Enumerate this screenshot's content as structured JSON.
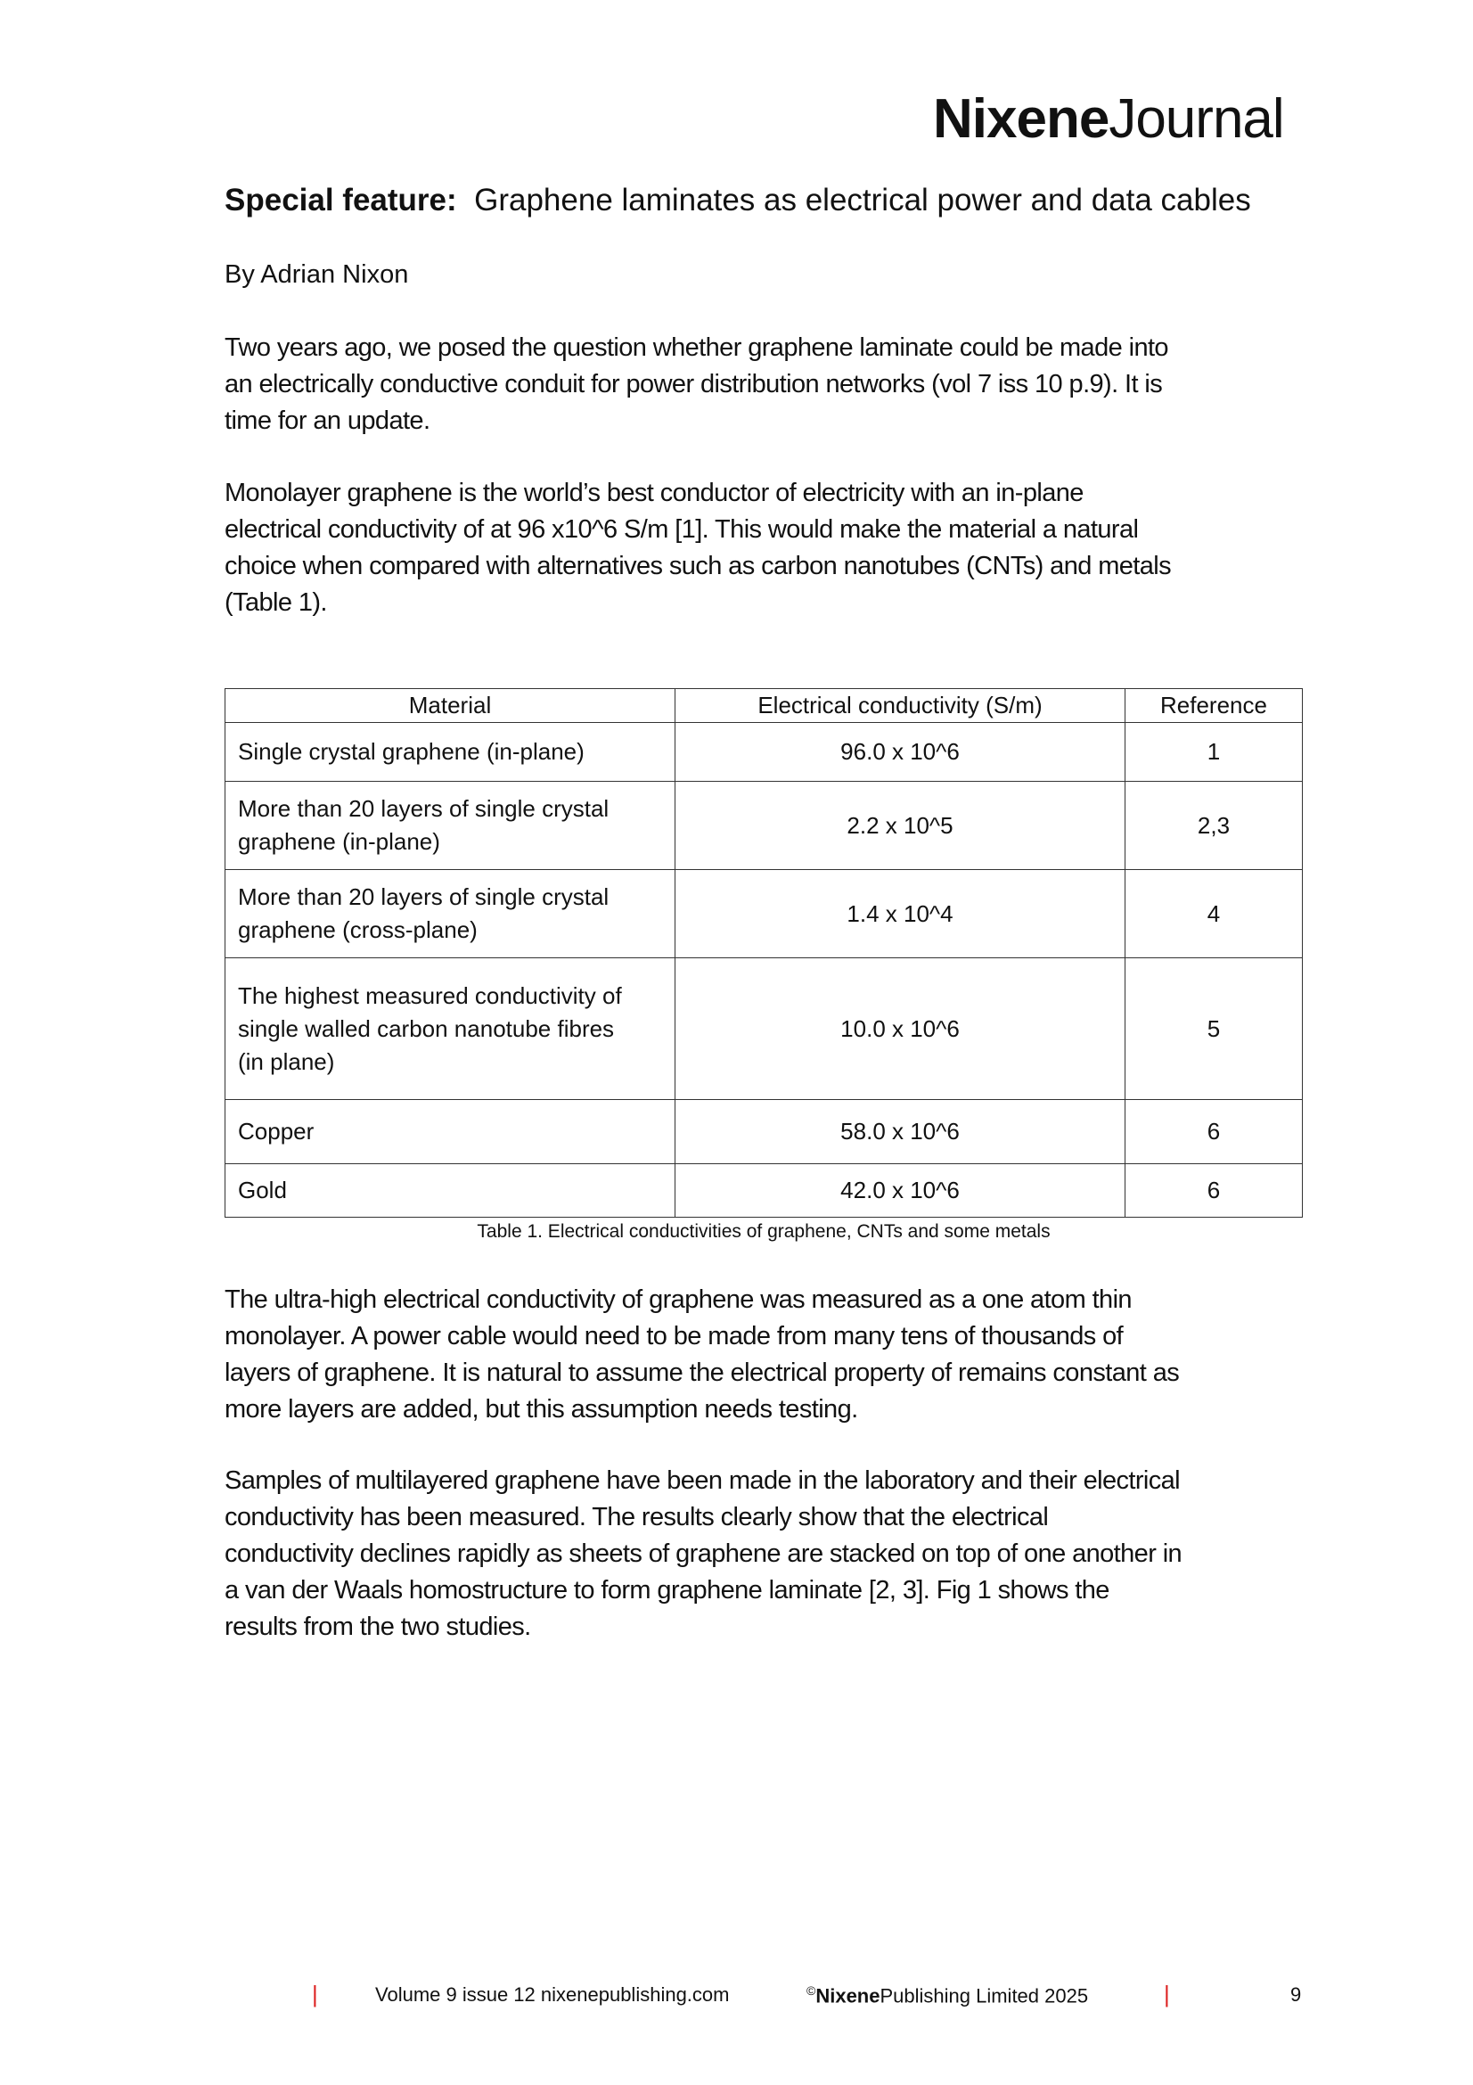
{
  "header": {
    "logo_bold": "Nixene",
    "logo_light": "Journal"
  },
  "article": {
    "title_label": "Special feature:",
    "title": "Graphene laminates as electrical power and data cables",
    "byline": "By Adrian Nixon",
    "para1": [
      "Two years ago, we posed the question whether graphene laminate could be made into",
      "an electrically conductive conduit for power distribution networks (vol 7 iss 10 p.9).  It is",
      "time for an update."
    ],
    "para2": [
      "Monolayer graphene is the world’s best conductor of electricity with an in-plane",
      "electrical conductivity of at 96 x10^6 S/m [1].  This would make the material a natural",
      "choice when compared with alternatives such as carbon nanotubes (CNTs) and metals",
      "(Table 1)."
    ],
    "para3": [
      "The ultra-high electrical conductivity of graphene was measured as a one atom thin",
      "monolayer.  A power cable would need to be made from many tens of thousands of",
      "layers of graphene.  It is natural to assume the electrical property of remains constant as",
      "more layers are added, but this assumption needs testing."
    ],
    "para4": [
      "Samples of multilayered graphene have been made in the laboratory and their electrical",
      "conductivity has been measured.  The results clearly show that the electrical",
      "conductivity declines rapidly as sheets of graphene are stacked on top of one another in",
      "a van der Waals homostructure to form graphene laminate [2, 3].  Fig 1 shows the",
      "results from the two studies."
    ]
  },
  "table": {
    "headers": [
      "Material",
      "Electrical conductivity (S/m)",
      "Reference"
    ],
    "rows": [
      {
        "material": [
          "Single crystal graphene (in-plane)"
        ],
        "conductivity": "96.0 x 10^6",
        "ref": "1"
      },
      {
        "material": [
          "More than 20 layers of single crystal",
          "graphene (in-plane)"
        ],
        "conductivity": "2.2 x 10^5",
        "ref": "2,3"
      },
      {
        "material": [
          "More than 20 layers of single crystal",
          "graphene (cross-plane)"
        ],
        "conductivity": "1.4 x 10^4",
        "ref": "4"
      },
      {
        "material": [
          "The highest measured conductivity of",
          "single walled carbon nanotube fibres",
          "(in plane)"
        ],
        "conductivity": "10.0 x 10^6",
        "ref": "5"
      },
      {
        "material": [
          "Copper"
        ],
        "conductivity": "58.0 x 10^6",
        "ref": "6"
      },
      {
        "material": [
          "Gold"
        ],
        "conductivity": "42.0 x 10^6",
        "ref": "6"
      }
    ],
    "caption": "Table 1. Electrical conductivities of graphene, CNTs and some metals"
  },
  "footer": {
    "separator": "|",
    "volume": "Volume 9 issue 12 nixenepublishing.com",
    "copyright_symbol": "©",
    "publisher_bold": "Nixene",
    "publisher_rest": "Publishing Limited 2025",
    "page": "9",
    "accent": "#dd2222"
  }
}
